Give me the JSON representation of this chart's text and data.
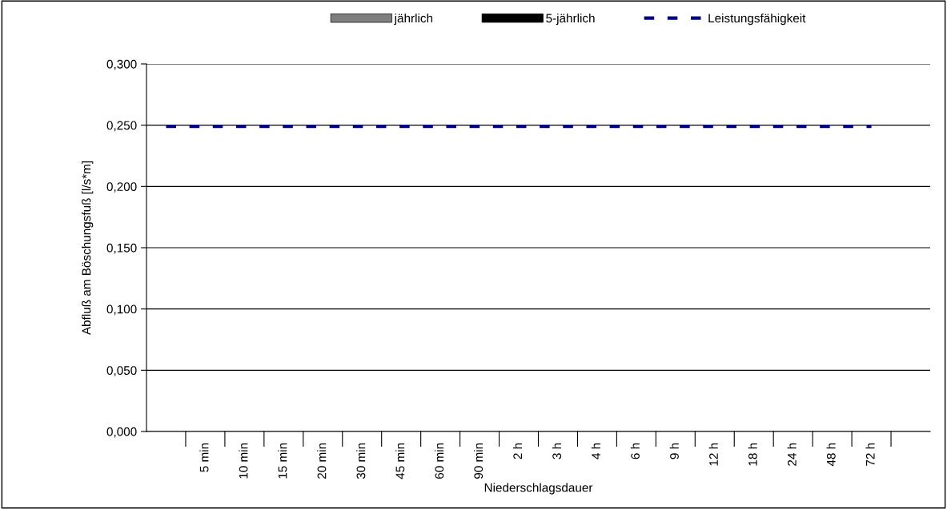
{
  "chart_data": {
    "type": "bar",
    "xlabel": "Niederschlagsdauer",
    "ylabel": "Abfluß am Böschungsfuß [l/s*m]",
    "categories": [
      null,
      "5 min",
      "10 min",
      "15 min",
      "20 min",
      "30 min",
      "45 min",
      "60 min",
      "90 min",
      "2 h",
      "3 h",
      "4 h",
      "6 h",
      "9 h",
      "12 h",
      "18 h",
      "24 h",
      "48 h",
      "72 h",
      null
    ],
    "series": [
      {
        "name": "jährlich",
        "color": "#7f7f7f",
        "values": [
          null,
          null,
          null,
          null,
          null,
          null,
          null,
          null,
          null,
          null,
          null,
          null,
          null,
          null,
          null,
          null,
          null,
          null,
          null,
          null
        ]
      },
      {
        "name": "5-jährlich",
        "color": "#000000",
        "values": [
          null,
          null,
          null,
          null,
          null,
          null,
          null,
          null,
          null,
          null,
          null,
          null,
          null,
          null,
          null,
          null,
          null,
          null,
          null,
          null
        ]
      },
      {
        "name": "Leistungsfähigkeit",
        "type": "line",
        "color": "#000080",
        "line_style": "dashed",
        "values": [
          0.249,
          0.249,
          0.249,
          0.249,
          0.249,
          0.249,
          0.249,
          0.249,
          0.249,
          0.249,
          0.249,
          0.249,
          0.249,
          0.249,
          0.249,
          0.249,
          0.249,
          0.249,
          0.249,
          null
        ]
      }
    ],
    "ylim": [
      0,
      0.3
    ],
    "yticks": [
      {
        "value": 0,
        "label": "0,000"
      },
      {
        "value": 0.05,
        "label": "0,050"
      },
      {
        "value": 0.1,
        "label": "0,100"
      },
      {
        "value": 0.15,
        "label": "0,150"
      },
      {
        "value": 0.2,
        "label": "0,200"
      },
      {
        "value": 0.25,
        "label": "0,250"
      },
      {
        "value": 0.3,
        "label": "0,300"
      }
    ],
    "grid": "y",
    "legend": "top"
  }
}
